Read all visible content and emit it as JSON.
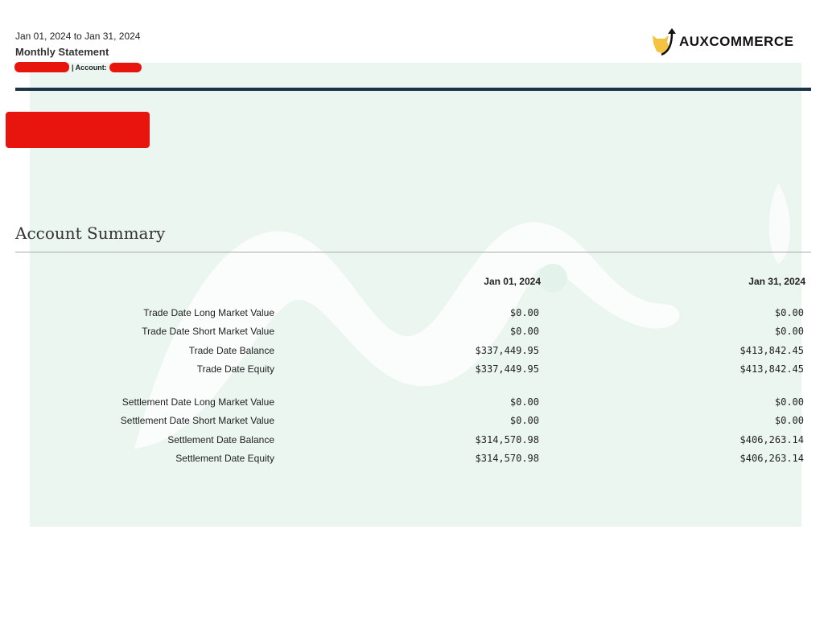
{
  "header": {
    "period": "Jan 01, 2024 to Jan 31, 2024",
    "title": "Monthly Statement",
    "account_label": "| Account:"
  },
  "logo": {
    "text": "AUXCOMMERCE",
    "accent": "#f5c342"
  },
  "colors": {
    "rule": "#1d3349",
    "watermark": "#ebf6f0",
    "redaction": "#e8150f"
  },
  "summary": {
    "title": "Account Summary",
    "columns": [
      "Jan 01, 2024",
      "Jan 31, 2024"
    ],
    "rows": [
      {
        "label": "Trade Date Long Market Value",
        "v1": "$0.00",
        "v2": "$0.00"
      },
      {
        "label": "Trade Date Short Market Value",
        "v1": "$0.00",
        "v2": "$0.00"
      },
      {
        "label": "Trade Date Balance",
        "v1": "$337,449.95",
        "v2": "$413,842.45"
      },
      {
        "label": "Trade Date Equity",
        "v1": "$337,449.95",
        "v2": "$413,842.45"
      },
      {
        "label": "Settlement Date Long Market Value",
        "v1": "$0.00",
        "v2": "$0.00"
      },
      {
        "label": "Settlement Date Short Market Value",
        "v1": "$0.00",
        "v2": "$0.00"
      },
      {
        "label": "Settlement Date Balance",
        "v1": "$314,570.98",
        "v2": "$406,263.14"
      },
      {
        "label": "Settlement Date Equity",
        "v1": "$314,570.98",
        "v2": "$406,263.14"
      }
    ]
  }
}
